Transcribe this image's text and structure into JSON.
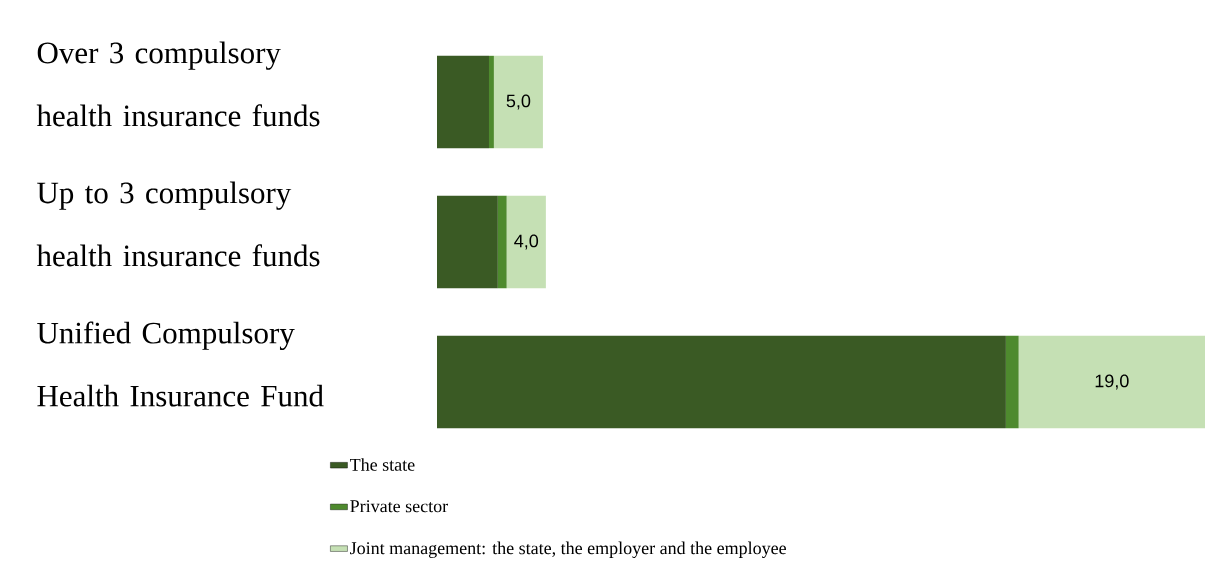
{
  "chart_data": {
    "type": "bar",
    "orientation": "horizontal",
    "stacked": true,
    "categories": [
      "Over 3 compulsory health insurance funds",
      "Up to 3 compulsory health insurance funds",
      "Unified Compulsory Health Insurance Fund"
    ],
    "series": [
      {
        "name": "The state",
        "color": "#3a5a24",
        "values": [
          5.3,
          6.2,
          58
        ]
      },
      {
        "name": "Private sector",
        "color": "#4e8a2e",
        "values": [
          0.5,
          0.9,
          1.3
        ]
      },
      {
        "name": "Joint management: the state, the employer and the employee",
        "color": "#c5e0b4",
        "values": [
          5,
          4,
          19
        ],
        "value_labels": [
          "5,0",
          "4,0",
          "19,0"
        ]
      }
    ],
    "legend": "bottom"
  }
}
